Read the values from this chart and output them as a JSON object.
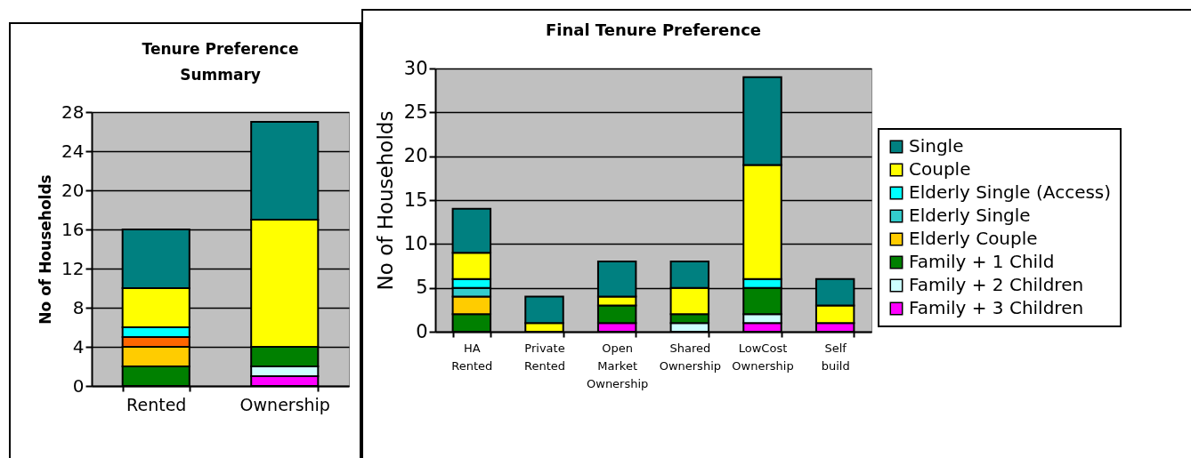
{
  "chart_data": [
    {
      "type": "bar",
      "title": "Tenure Preference Summary",
      "ylabel": "No of Households",
      "categories": [
        "Rented",
        "Ownership"
      ],
      "stacked": true,
      "ylim": [
        0,
        28
      ],
      "yticks": [
        0,
        4,
        8,
        12,
        16,
        20,
        24,
        28
      ],
      "grid": "y",
      "legend": false,
      "series": [
        {
          "color": "#ff00ff",
          "values": [
            null,
            1
          ]
        },
        {
          "color": "#ccffff",
          "values": [
            null,
            1
          ]
        },
        {
          "color": "#008000",
          "values": [
            2,
            2
          ]
        },
        {
          "color": "#ffcc00",
          "values": [
            2,
            null
          ]
        },
        {
          "color": "#ff6600",
          "values": [
            1,
            null
          ]
        },
        {
          "color": "#00ffff",
          "values": [
            1,
            null
          ]
        },
        {
          "color": "#ffff00",
          "values": [
            4,
            13
          ]
        },
        {
          "color": "#008080",
          "values": [
            6,
            10
          ]
        }
      ]
    },
    {
      "type": "bar",
      "title": "Final Tenure Preference",
      "ylabel": "No of Households",
      "categories": [
        "HA Rented",
        "Private Rented",
        "Open Market Ownership",
        "Shared Ownership",
        "LowCost Ownership",
        "Self build"
      ],
      "stacked": true,
      "ylim": [
        0,
        30
      ],
      "yticks": [
        0,
        5,
        10,
        15,
        20,
        25,
        30
      ],
      "grid": "y",
      "legend": "right",
      "series": [
        {
          "name": "Family + 3 Children",
          "color": "#ff00ff",
          "values": [
            null,
            null,
            1,
            null,
            1,
            1
          ]
        },
        {
          "name": "Family + 2 Children",
          "color": "#ccffff",
          "values": [
            null,
            null,
            null,
            1,
            1,
            null
          ]
        },
        {
          "name": "Family + 1 Child",
          "color": "#008000",
          "values": [
            2,
            null,
            2,
            1,
            3,
            null
          ]
        },
        {
          "name": "Elderly Couple",
          "color": "#ffcc00",
          "values": [
            2,
            null,
            null,
            null,
            null,
            null
          ]
        },
        {
          "name": "Elderly Single",
          "color": "#33cccc",
          "values": [
            1,
            null,
            null,
            null,
            null,
            null
          ]
        },
        {
          "name": "Elderly Single (Access)",
          "color": "#00ffff",
          "values": [
            1,
            null,
            null,
            null,
            1,
            null
          ]
        },
        {
          "name": "Couple",
          "color": "#ffff00",
          "values": [
            3,
            1,
            1,
            3,
            13,
            2
          ]
        },
        {
          "name": "Single",
          "color": "#008080",
          "values": [
            5,
            3,
            4,
            3,
            10,
            3
          ]
        }
      ]
    }
  ]
}
